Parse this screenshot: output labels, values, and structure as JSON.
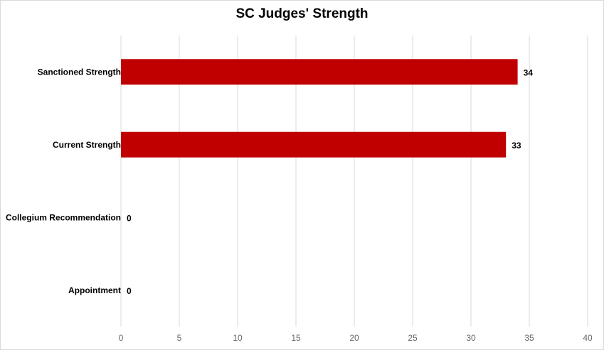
{
  "chart_data": {
    "type": "bar",
    "orientation": "horizontal",
    "title": "SC Judges' Strength",
    "categories": [
      "Sanctioned Strength",
      "Current Strength",
      "Collegium Recommendation",
      "Appointment"
    ],
    "values": [
      34,
      33,
      0,
      0
    ],
    "xlim": [
      0,
      40
    ],
    "xticks": [
      0,
      5,
      10,
      15,
      20,
      25,
      30,
      35,
      40
    ],
    "grid": "vertical",
    "legend": "none",
    "bar_color": "#c00000",
    "grid_color": "#d9d9d9"
  }
}
